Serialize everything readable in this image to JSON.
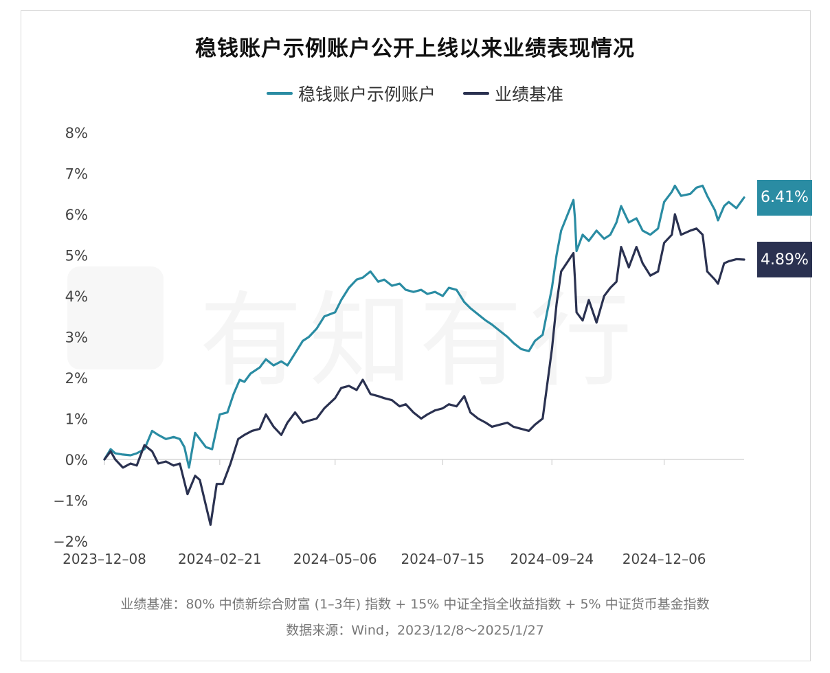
{
  "chart_data": {
    "type": "line",
    "title": "稳钱账户示例账户公开上线以来业绩表现情况",
    "xlabel": "",
    "ylabel": "",
    "ylim": [
      -2,
      8
    ],
    "y_ticks": [
      "8%",
      "7%",
      "6%",
      "5%",
      "4%",
      "3%",
      "2%",
      "1%",
      "0%",
      "−1%",
      "−2%"
    ],
    "x_ticks": [
      "2023–12–08",
      "2024–02–21",
      "2024–05–06",
      "2024–07–15",
      "2024–09–24",
      "2024–12–06"
    ],
    "x_range": [
      "2023-12-08",
      "2025-01-27"
    ],
    "legend_position": "top-center",
    "grid": false,
    "series": [
      {
        "name": "稳钱账户示例账户",
        "color": "#2A8CA3",
        "end_label": "6.41%",
        "points": [
          [
            "2023-12-08",
            0.0
          ],
          [
            "2023-12-12",
            0.25
          ],
          [
            "2023-12-15",
            0.15
          ],
          [
            "2023-12-20",
            0.12
          ],
          [
            "2023-12-25",
            0.1
          ],
          [
            "2023-12-29",
            0.15
          ],
          [
            "2024-01-03",
            0.25
          ],
          [
            "2024-01-08",
            0.7
          ],
          [
            "2024-01-12",
            0.6
          ],
          [
            "2024-01-17",
            0.5
          ],
          [
            "2024-01-22",
            0.55
          ],
          [
            "2024-01-26",
            0.5
          ],
          [
            "2024-01-29",
            0.3
          ],
          [
            "2024-02-01",
            -0.2
          ],
          [
            "2024-02-05",
            0.65
          ],
          [
            "2024-02-08",
            0.5
          ],
          [
            "2024-02-12",
            0.3
          ],
          [
            "2024-02-16",
            0.25
          ],
          [
            "2024-02-21",
            1.1
          ],
          [
            "2024-02-26",
            1.15
          ],
          [
            "2024-03-01",
            1.6
          ],
          [
            "2024-03-05",
            1.95
          ],
          [
            "2024-03-08",
            1.9
          ],
          [
            "2024-03-12",
            2.1
          ],
          [
            "2024-03-18",
            2.25
          ],
          [
            "2024-03-22",
            2.45
          ],
          [
            "2024-03-27",
            2.3
          ],
          [
            "2024-04-01",
            2.4
          ],
          [
            "2024-04-05",
            2.3
          ],
          [
            "2024-04-10",
            2.6
          ],
          [
            "2024-04-15",
            2.9
          ],
          [
            "2024-04-19",
            3.0
          ],
          [
            "2024-04-24",
            3.2
          ],
          [
            "2024-04-29",
            3.5
          ],
          [
            "2024-05-06",
            3.6
          ],
          [
            "2024-05-10",
            3.9
          ],
          [
            "2024-05-15",
            4.2
          ],
          [
            "2024-05-20",
            4.4
          ],
          [
            "2024-05-24",
            4.45
          ],
          [
            "2024-05-29",
            4.6
          ],
          [
            "2024-06-03",
            4.35
          ],
          [
            "2024-06-07",
            4.4
          ],
          [
            "2024-06-12",
            4.25
          ],
          [
            "2024-06-17",
            4.3
          ],
          [
            "2024-06-21",
            4.15
          ],
          [
            "2024-06-26",
            4.1
          ],
          [
            "2024-07-01",
            4.15
          ],
          [
            "2024-07-05",
            4.05
          ],
          [
            "2024-07-10",
            4.1
          ],
          [
            "2024-07-15",
            4.0
          ],
          [
            "2024-07-19",
            4.2
          ],
          [
            "2024-07-24",
            4.15
          ],
          [
            "2024-07-29",
            3.85
          ],
          [
            "2024-08-02",
            3.7
          ],
          [
            "2024-08-07",
            3.55
          ],
          [
            "2024-08-12",
            3.4
          ],
          [
            "2024-08-16",
            3.3
          ],
          [
            "2024-08-21",
            3.15
          ],
          [
            "2024-08-26",
            3.0
          ],
          [
            "2024-08-30",
            2.85
          ],
          [
            "2024-09-04",
            2.7
          ],
          [
            "2024-09-09",
            2.65
          ],
          [
            "2024-09-13",
            2.9
          ],
          [
            "2024-09-18",
            3.05
          ],
          [
            "2024-09-24",
            4.2
          ],
          [
            "2024-09-27",
            5.0
          ],
          [
            "2024-09-30",
            5.6
          ],
          [
            "2024-10-08",
            6.35
          ],
          [
            "2024-10-09",
            5.9
          ],
          [
            "2024-10-10",
            5.1
          ],
          [
            "2024-10-14",
            5.5
          ],
          [
            "2024-10-18",
            5.35
          ],
          [
            "2024-10-23",
            5.6
          ],
          [
            "2024-10-28",
            5.4
          ],
          [
            "2024-11-01",
            5.5
          ],
          [
            "2024-11-05",
            5.8
          ],
          [
            "2024-11-08",
            6.2
          ],
          [
            "2024-11-13",
            5.8
          ],
          [
            "2024-11-18",
            5.9
          ],
          [
            "2024-11-22",
            5.6
          ],
          [
            "2024-11-27",
            5.5
          ],
          [
            "2024-12-02",
            5.65
          ],
          [
            "2024-12-06",
            6.3
          ],
          [
            "2024-12-11",
            6.55
          ],
          [
            "2024-12-13",
            6.7
          ],
          [
            "2024-12-17",
            6.45
          ],
          [
            "2024-12-23",
            6.5
          ],
          [
            "2024-12-27",
            6.65
          ],
          [
            "2024-12-31",
            6.7
          ],
          [
            "2025-01-03",
            6.45
          ],
          [
            "2025-01-08",
            6.1
          ],
          [
            "2025-01-10",
            5.85
          ],
          [
            "2025-01-14",
            6.2
          ],
          [
            "2025-01-17",
            6.3
          ],
          [
            "2025-01-22",
            6.15
          ],
          [
            "2025-01-27",
            6.41
          ]
        ]
      },
      {
        "name": "业绩基准",
        "color": "#2A3150",
        "end_label": "4.89%",
        "points": [
          [
            "2023-12-08",
            0.0
          ],
          [
            "2023-12-12",
            0.2
          ],
          [
            "2023-12-15",
            0.0
          ],
          [
            "2023-12-20",
            -0.2
          ],
          [
            "2023-12-25",
            -0.1
          ],
          [
            "2023-12-29",
            -0.15
          ],
          [
            "2024-01-03",
            0.35
          ],
          [
            "2024-01-08",
            0.2
          ],
          [
            "2024-01-12",
            -0.1
          ],
          [
            "2024-01-17",
            -0.05
          ],
          [
            "2024-01-22",
            -0.15
          ],
          [
            "2024-01-26",
            -0.1
          ],
          [
            "2024-01-31",
            -0.85
          ],
          [
            "2024-02-05",
            -0.4
          ],
          [
            "2024-02-08",
            -0.5
          ],
          [
            "2024-02-15",
            -1.6
          ],
          [
            "2024-02-19",
            -0.6
          ],
          [
            "2024-02-23",
            -0.6
          ],
          [
            "2024-02-28",
            -0.1
          ],
          [
            "2024-03-04",
            0.5
          ],
          [
            "2024-03-08",
            0.6
          ],
          [
            "2024-03-13",
            0.7
          ],
          [
            "2024-03-18",
            0.75
          ],
          [
            "2024-03-22",
            1.1
          ],
          [
            "2024-03-27",
            0.8
          ],
          [
            "2024-04-01",
            0.6
          ],
          [
            "2024-04-05",
            0.9
          ],
          [
            "2024-04-10",
            1.15
          ],
          [
            "2024-04-15",
            0.9
          ],
          [
            "2024-04-19",
            0.95
          ],
          [
            "2024-04-24",
            1.0
          ],
          [
            "2024-04-29",
            1.25
          ],
          [
            "2024-05-06",
            1.5
          ],
          [
            "2024-05-10",
            1.75
          ],
          [
            "2024-05-15",
            1.8
          ],
          [
            "2024-05-20",
            1.7
          ],
          [
            "2024-05-24",
            1.95
          ],
          [
            "2024-05-29",
            1.6
          ],
          [
            "2024-06-03",
            1.55
          ],
          [
            "2024-06-07",
            1.5
          ],
          [
            "2024-06-12",
            1.45
          ],
          [
            "2024-06-17",
            1.3
          ],
          [
            "2024-06-21",
            1.35
          ],
          [
            "2024-06-26",
            1.15
          ],
          [
            "2024-07-01",
            1.0
          ],
          [
            "2024-07-05",
            1.1
          ],
          [
            "2024-07-10",
            1.2
          ],
          [
            "2024-07-15",
            1.25
          ],
          [
            "2024-07-19",
            1.35
          ],
          [
            "2024-07-24",
            1.3
          ],
          [
            "2024-07-29",
            1.55
          ],
          [
            "2024-08-02",
            1.15
          ],
          [
            "2024-08-07",
            1.0
          ],
          [
            "2024-08-12",
            0.9
          ],
          [
            "2024-08-16",
            0.8
          ],
          [
            "2024-08-21",
            0.85
          ],
          [
            "2024-08-26",
            0.9
          ],
          [
            "2024-08-30",
            0.8
          ],
          [
            "2024-09-04",
            0.75
          ],
          [
            "2024-09-09",
            0.7
          ],
          [
            "2024-09-13",
            0.85
          ],
          [
            "2024-09-18",
            1.0
          ],
          [
            "2024-09-24",
            2.7
          ],
          [
            "2024-09-27",
            3.8
          ],
          [
            "2024-09-30",
            4.6
          ],
          [
            "2024-10-08",
            5.05
          ],
          [
            "2024-10-09",
            4.4
          ],
          [
            "2024-10-10",
            3.6
          ],
          [
            "2024-10-14",
            3.4
          ],
          [
            "2024-10-18",
            3.9
          ],
          [
            "2024-10-23",
            3.35
          ],
          [
            "2024-10-28",
            4.0
          ],
          [
            "2024-11-01",
            4.2
          ],
          [
            "2024-11-05",
            4.35
          ],
          [
            "2024-11-08",
            5.2
          ],
          [
            "2024-11-13",
            4.7
          ],
          [
            "2024-11-18",
            5.2
          ],
          [
            "2024-11-22",
            4.8
          ],
          [
            "2024-11-27",
            4.5
          ],
          [
            "2024-12-02",
            4.6
          ],
          [
            "2024-12-06",
            5.3
          ],
          [
            "2024-12-11",
            5.5
          ],
          [
            "2024-12-13",
            6.0
          ],
          [
            "2024-12-17",
            5.5
          ],
          [
            "2024-12-23",
            5.6
          ],
          [
            "2024-12-27",
            5.65
          ],
          [
            "2024-12-31",
            5.5
          ],
          [
            "2025-01-03",
            4.6
          ],
          [
            "2025-01-08",
            4.4
          ],
          [
            "2025-01-10",
            4.3
          ],
          [
            "2025-01-14",
            4.8
          ],
          [
            "2025-01-17",
            4.85
          ],
          [
            "2025-01-22",
            4.9
          ],
          [
            "2025-01-27",
            4.89
          ]
        ]
      }
    ]
  },
  "footnote": {
    "benchmark_note": "业绩基准：80% 中债新综合财富 (1–3年) 指数 + 15% 中证全指全收益指数 + 5% 中证货币基金指数",
    "source_note": "数据来源：Wind，2023/12/8～2025/1/27"
  },
  "watermark": "有知有行"
}
